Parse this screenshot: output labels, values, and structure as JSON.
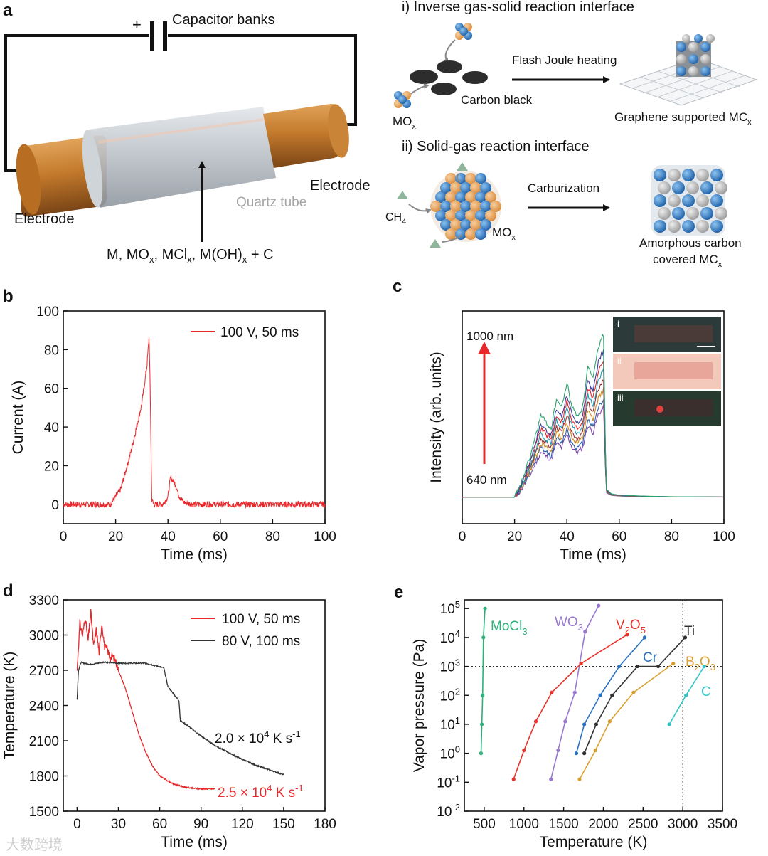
{
  "panel_labels": {
    "a": "a",
    "b": "b",
    "c": "c",
    "d": "d",
    "e": "e"
  },
  "panel_a": {
    "plus": "+",
    "capacitor_label": "Capacitor banks",
    "electrode_left": "Electrode",
    "electrode_right": "Electrode",
    "quartz_tube": "Quartz tube",
    "sample_main": "M, MO",
    "sample_sub1": "x",
    "sample_mid1": ", MCl",
    "sample_sub2": "x",
    "sample_mid2": ", M(OH)",
    "sample_sub3": "x",
    "sample_end": " + C",
    "route_i_title": "i) Inverse gas-solid reaction interface",
    "route_i_arrow": "Flash Joule heating",
    "carbon_black": "Carbon black",
    "mox_main": "MO",
    "mox_sub": "x",
    "route_i_product_main": "Graphene supported MC",
    "route_i_product_sub": "x",
    "route_ii_title": "ii) Solid-gas reaction interface",
    "route_ii_arrow": "Carburization",
    "ch4_main": "CH",
    "ch4_sub": "4",
    "mox2_main": "MO",
    "mox2_sub": "x",
    "route_ii_product_line1": "Amorphous carbon",
    "route_ii_product_main": "covered MC",
    "route_ii_product_sub": "x"
  },
  "chart_data": [
    {
      "panel": "b",
      "type": "line",
      "xlabel": "Time (ms)",
      "ylabel": "Current (A)",
      "xlim": [
        0,
        100
      ],
      "ylim": [
        -10,
        100
      ],
      "xticks": [
        "0",
        "20",
        "40",
        "60",
        "80",
        "100"
      ],
      "yticks": [
        "0",
        "20",
        "40",
        "60",
        "80",
        "100"
      ],
      "series": [
        {
          "name": "100 V, 50 ms",
          "color": "#e8282b",
          "x": [
            0,
            18,
            22,
            26,
            30,
            32,
            32.8,
            33.2,
            33.8,
            34.5,
            38,
            40,
            41,
            42,
            43,
            44,
            46,
            50,
            60,
            80,
            100
          ],
          "y": [
            0,
            0,
            8,
            28,
            52,
            72,
            87,
            60,
            3,
            0,
            0,
            4,
            14,
            12,
            10,
            5,
            1,
            0,
            0,
            0,
            0
          ]
        }
      ]
    },
    {
      "panel": "c",
      "type": "line",
      "xlabel": "Time (ms)",
      "ylabel": "Intensity (arb. units)",
      "xlim": [
        0,
        100
      ],
      "ylim": [
        0,
        1
      ],
      "xticks": [
        "0",
        "20",
        "40",
        "60",
        "80",
        "100"
      ],
      "annotation_top": "1000 nm",
      "annotation_bottom": "640 nm",
      "inset_labels": [
        "i",
        "ii",
        "iii"
      ],
      "profile_x": [
        0,
        20,
        22,
        26,
        30,
        34,
        36,
        38,
        40,
        42,
        44,
        46,
        48,
        50,
        52,
        54,
        55,
        57,
        60,
        70,
        80,
        90,
        100
      ],
      "profile_y": [
        0,
        0,
        0.06,
        0.25,
        0.5,
        0.42,
        0.6,
        0.55,
        0.7,
        0.55,
        0.5,
        0.55,
        0.8,
        0.72,
        0.92,
        1.0,
        0.05,
        0.02,
        0.012,
        0.006,
        0.003,
        0.002,
        0.001
      ],
      "series": [
        {
          "name": "640 nm",
          "color": "#7a3fa8",
          "scale": 0.55
        },
        {
          "name": "",
          "color": "#2b5fb0",
          "scale": 0.6
        },
        {
          "name": "",
          "color": "#d08a1f",
          "scale": 0.66
        },
        {
          "name": "",
          "color": "#9b2c2c",
          "scale": 0.72
        },
        {
          "name": "",
          "color": "#1f9bb5",
          "scale": 0.78
        },
        {
          "name": "",
          "color": "#e8282b",
          "scale": 0.84
        },
        {
          "name": "",
          "color": "#3b3b9a",
          "scale": 0.9
        },
        {
          "name": "1000 nm",
          "color": "#2aa36c",
          "scale": 1.0
        }
      ]
    },
    {
      "panel": "d",
      "type": "line",
      "xlabel": "Time (ms)",
      "ylabel": "Temperature (K)",
      "xlim": [
        -10,
        180
      ],
      "ylim": [
        1500,
        3300
      ],
      "xticks": [
        "0",
        "30",
        "60",
        "90",
        "120",
        "150",
        "180"
      ],
      "yticks": [
        "1500",
        "1800",
        "2100",
        "2400",
        "2700",
        "3000",
        "3300"
      ],
      "series": [
        {
          "name": "100 V, 50 ms",
          "color": "#e8282b",
          "x": [
            0,
            2,
            4,
            6,
            8,
            10,
            12,
            14,
            16,
            18,
            20,
            22,
            24,
            26,
            28,
            30,
            35,
            40,
            45,
            50,
            55,
            60,
            70,
            80,
            90,
            100
          ],
          "y": [
            2700,
            3100,
            3000,
            3150,
            2950,
            3200,
            2900,
            3050,
            2850,
            3100,
            2900,
            2880,
            2800,
            2820,
            2780,
            2700,
            2550,
            2350,
            2150,
            2000,
            1880,
            1800,
            1730,
            1700,
            1690,
            1690
          ]
        },
        {
          "name": "80 V, 100 ms",
          "color": "#333333",
          "x": [
            0,
            1,
            3,
            5,
            10,
            20,
            30,
            40,
            50,
            60,
            63,
            66,
            70,
            74,
            75,
            80,
            90,
            100,
            110,
            120,
            130,
            140,
            150
          ],
          "y": [
            2450,
            2700,
            2770,
            2760,
            2750,
            2770,
            2760,
            2760,
            2760,
            2730,
            2720,
            2560,
            2500,
            2440,
            2270,
            2230,
            2140,
            2060,
            2000,
            1940,
            1890,
            1850,
            1810
          ]
        }
      ],
      "rate_label_black": "2.0 × 10",
      "rate_label_black_exp": "4",
      "rate_label_black_unit": " K s",
      "rate_label_black_unit_exp": "-1",
      "rate_label_red": "2.5 × 10",
      "rate_label_red_exp": "4",
      "rate_label_red_unit": " K s",
      "rate_label_red_unit_exp": "-1"
    },
    {
      "panel": "e",
      "type": "line",
      "yscale": "log",
      "xlabel": "Temperature (K)",
      "ylabel": "Vapor pressure (Pa)",
      "xlim": [
        250,
        3500
      ],
      "ylim_log10": [
        -2,
        5.3
      ],
      "xticks": [
        "500",
        "1000",
        "1500",
        "2000",
        "2500",
        "3000",
        "3500"
      ],
      "yticks_base": "10",
      "yticks_exp": [
        "-2",
        "-1",
        "0",
        "1",
        "2",
        "3",
        "4",
        "5"
      ],
      "ref_temperature": 3000,
      "ref_pressure_log10": 3,
      "series": [
        {
          "name": "MoCl",
          "name_sub": "3",
          "color": "#2fb07a",
          "x": [
            460,
            470,
            480,
            490,
            510
          ],
          "log_y": [
            0,
            1,
            2,
            4,
            5
          ]
        },
        {
          "name": "WO",
          "name_sub": "3",
          "color": "#9a78cf",
          "x": [
            1340,
            1430,
            1520,
            1640,
            1770,
            1940
          ],
          "log_y": [
            -0.9,
            0.1,
            1.1,
            2.1,
            4.2,
            5.1
          ]
        },
        {
          "name": "V",
          "name_sub": "2",
          "name2": "O",
          "name2_sub": "5",
          "color": "#e8322a",
          "x": [
            870,
            1000,
            1150,
            1350,
            1720,
            2300
          ],
          "log_y": [
            -0.9,
            0.1,
            1.1,
            2.1,
            3.1,
            4.1
          ]
        },
        {
          "name": "Cr",
          "color": "#2a70c0",
          "x": [
            1660,
            1760,
            1960,
            2200,
            2520
          ],
          "log_y": [
            0,
            1,
            2,
            3,
            4
          ]
        },
        {
          "name": "Ti",
          "color": "#333333",
          "x": [
            1760,
            1910,
            2110,
            2430,
            2690,
            3030
          ],
          "log_y": [
            0,
            1,
            2,
            3,
            3,
            4
          ]
        },
        {
          "name": "B",
          "name_sub": "2",
          "name2": "O",
          "name2_sub": "3",
          "color": "#d9a030",
          "x": [
            1700,
            1900,
            2080,
            2380,
            2880
          ],
          "log_y": [
            -0.9,
            0.1,
            1.1,
            2.1,
            3.1
          ]
        },
        {
          "name": "C",
          "color": "#33c5c8",
          "x": [
            2830,
            3040,
            3270
          ],
          "log_y": [
            1,
            2,
            3
          ]
        }
      ]
    }
  ],
  "watermark": "大数跨境"
}
